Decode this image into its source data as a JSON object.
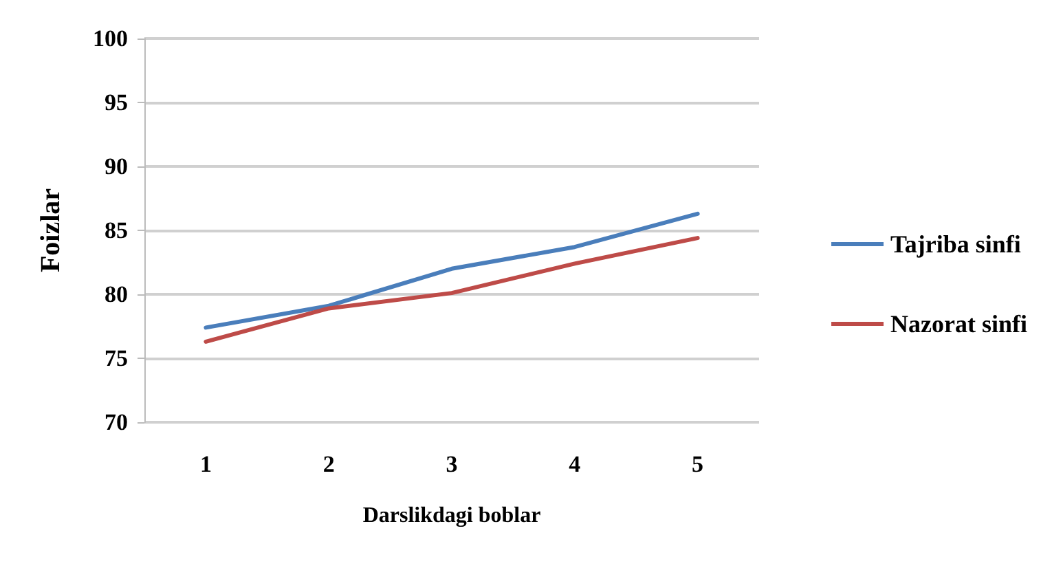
{
  "chart_data": {
    "type": "line",
    "xlabel": "Darslikdagi boblar",
    "ylabel": "Foizlar",
    "categories": [
      "1",
      "2",
      "3",
      "4",
      "5"
    ],
    "series": [
      {
        "name": "Tajriba sinfi",
        "color": "#4a7ebb",
        "values": [
          77.4,
          79.1,
          82.0,
          83.7,
          86.3
        ]
      },
      {
        "name": "Nazorat sinfi",
        "color": "#be4b48",
        "values": [
          76.3,
          78.9,
          80.1,
          82.4,
          84.4
        ]
      }
    ],
    "ylim": [
      70,
      100
    ],
    "yticks": [
      70,
      75,
      80,
      85,
      90,
      95,
      100
    ],
    "grid": "y",
    "legend": "right",
    "marker": "none",
    "line_style": "solid"
  }
}
